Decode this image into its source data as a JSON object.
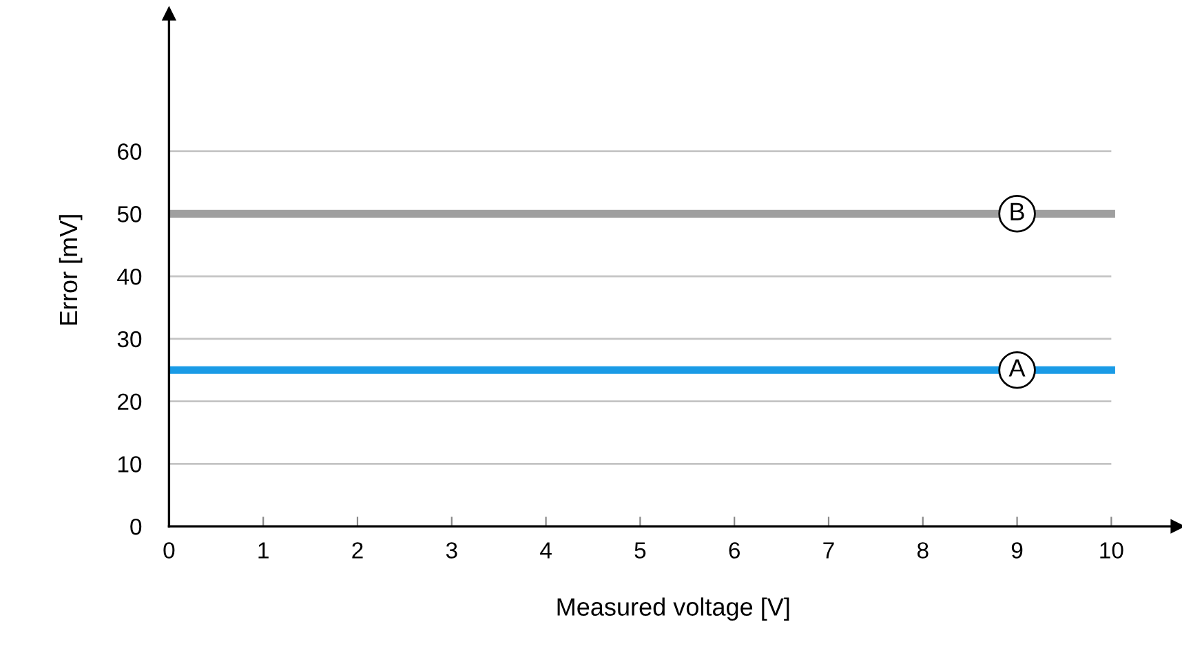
{
  "chart_data": {
    "type": "line",
    "xlabel": "Measured voltage [V]",
    "ylabel": "Error [mV]",
    "x": [
      0,
      10
    ],
    "series": [
      {
        "name": "A",
        "color": "#1a9be6",
        "values": [
          25,
          25
        ]
      },
      {
        "name": "B",
        "color": "#9f9f9f",
        "values": [
          50,
          50
        ]
      }
    ],
    "xlim": [
      0,
      10.7
    ],
    "ylim": [
      0,
      82
    ],
    "xticks": [
      0,
      1,
      2,
      3,
      4,
      5,
      6,
      7,
      8,
      9,
      10
    ],
    "yticks": [
      0,
      10,
      20,
      30,
      40,
      50,
      60
    ],
    "grid": "y",
    "legend": false,
    "marker": "none",
    "line_style": "solid"
  }
}
